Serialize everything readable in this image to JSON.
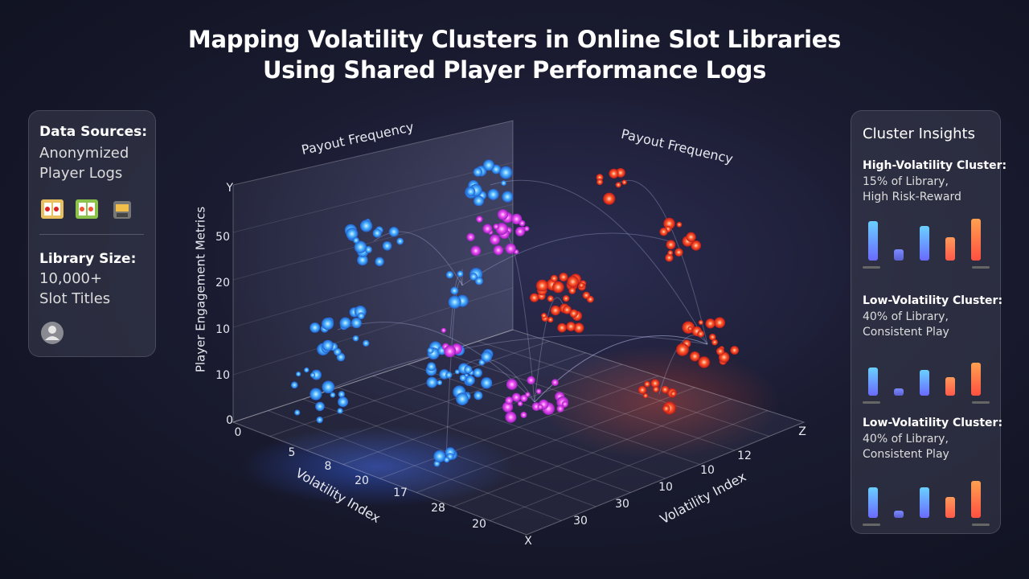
{
  "header": {
    "line1": "Mapping Volatility Clusters in Online Slot Libraries",
    "line2": "Using Shared Player Performance Logs"
  },
  "sources": {
    "heading": "Data Sources:",
    "lines": [
      "Anonymized",
      "Player Logs"
    ]
  },
  "library": {
    "heading": "Library Size:",
    "lines": [
      "10,000+",
      "Slot Titles"
    ]
  },
  "plot": {
    "y_axis_title": "Player Engagement Metrics",
    "x_axis_title": "Volatility Index",
    "z_axis_title": "Volatility Index",
    "wall_labels": [
      "Payout Frequency",
      "Payout Frequency"
    ],
    "y_ticks": [
      "Y",
      "50",
      "20",
      "10",
      "10",
      "0"
    ],
    "x_ticks": [
      "0",
      "5",
      "8",
      "20",
      "17",
      "28",
      "20",
      "X"
    ],
    "z_ticks": [
      "Z",
      "12",
      "10",
      "10",
      "30",
      "30"
    ]
  },
  "insights": {
    "title": "Cluster Insights",
    "cards": [
      {
        "heading": "High-Volatility Cluster:",
        "lines": [
          "15% of Library,",
          "High Risk-Reward"
        ],
        "bars": [
          85,
          25,
          75,
          50,
          90
        ]
      },
      {
        "heading": "Low-Volatility Cluster:",
        "lines": [
          "40% of Library,",
          "Consistent Play"
        ],
        "bars": [
          60,
          15,
          55,
          40,
          70
        ]
      },
      {
        "heading": "Low-Volatility Cluster:",
        "lines": [
          "40% of Library,",
          "Consistent Play"
        ],
        "bars": [
          65,
          15,
          65,
          45,
          80
        ]
      }
    ]
  }
}
